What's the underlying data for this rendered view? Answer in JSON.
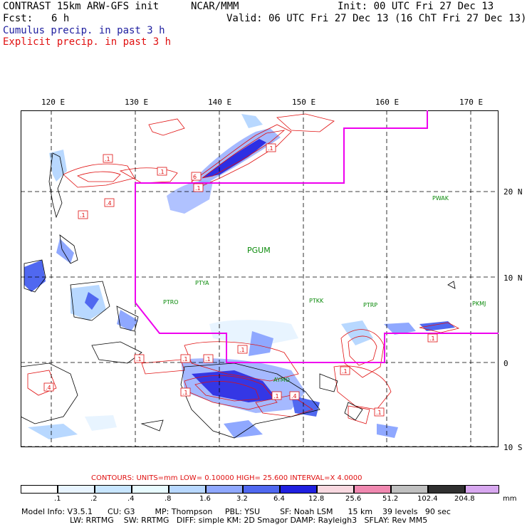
{
  "header": {
    "model": "CONTRAST 15km ARW-GFS init",
    "org": "NCAR/MMM",
    "init": "Init: 00 UTC Fri 27 Dec 13",
    "fcst_label": "Fcst:",
    "fcst_value": "6 h",
    "valid": "Valid: 06 UTC Fri 27 Dec 13 (16 ChT Fri 27 Dec 13)",
    "cumulus": "Cumulus precip. in past 3 h",
    "explicit": "Explicit precip. in past 3 h"
  },
  "axes": {
    "lon_labels": [
      "120 E",
      "130 E",
      "140 E",
      "150 E",
      "160 E",
      "170 E"
    ],
    "lat_labels": [
      "20 N",
      "10 N",
      "0",
      "10 S"
    ]
  },
  "stations": [
    "PGUM",
    "PTYA",
    "PTRO",
    "PTKK",
    "PTRP",
    "PKMJ",
    "PWAK",
    "AYMO"
  ],
  "map_labels": [
    ".1",
    ".1",
    ".4",
    ".1",
    ".1",
    "6",
    ".1",
    ".1",
    ".1",
    ".1",
    ".4",
    ".1",
    ".1",
    ".1",
    ".4",
    ".1",
    ".1",
    ".1"
  ],
  "contours": {
    "text": "CONTOURS:  UNITS=mm  LOW= 0.10000     HIGH=  25.600     INTERVAL=X  4.0000"
  },
  "colorbar": {
    "values": [
      ".1",
      ".2",
      ".4",
      ".8",
      "1.6",
      "3.2",
      "6.4",
      "12.8",
      "25.6",
      "51.2",
      "102.4",
      "204.8"
    ],
    "units": "mm",
    "colors": [
      "#ffffff",
      "#e8f4ff",
      "#c8e6ff",
      "#e8fbff",
      "#b8d8ff",
      "#8fa8ff",
      "#5068f0",
      "#2020e0",
      "#f8d8e0",
      "#f088b0",
      "#c0c0c0",
      "#303030",
      "#d8a8f0"
    ]
  },
  "info": {
    "line1": "Model Info: V3.5.1      CU: G3        MP: Thompson     PBL: YSU        SF: Noah LSM      15 km    39 levels   90 sec",
    "line2": "LW: RRTMG    SW: RRTMG   DIFF: simple KM: 2D Smagor DAMP: Rayleigh3   SFLAY: Rev MM5"
  },
  "colors": {
    "explicit": "#e01010",
    "cumulus": "#2020a0",
    "boundary": "#ee00ee",
    "station": "#0a8a0a"
  }
}
